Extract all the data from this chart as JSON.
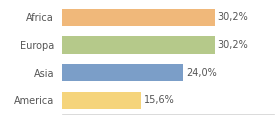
{
  "categories": [
    "America",
    "Asia",
    "Europa",
    "Africa"
  ],
  "values": [
    15.6,
    24.0,
    30.2,
    30.2
  ],
  "bar_colors": [
    "#f5d47b",
    "#7b9ec8",
    "#b5c98a",
    "#f0b87a"
  ],
  "label_texts": [
    "15,6%",
    "24,0%",
    "30,2%",
    "30,2%"
  ],
  "xlim": [
    0,
    42
  ],
  "background_color": "#ffffff",
  "bar_height": 0.62,
  "label_fontsize": 7.0,
  "tick_fontsize": 7.0
}
